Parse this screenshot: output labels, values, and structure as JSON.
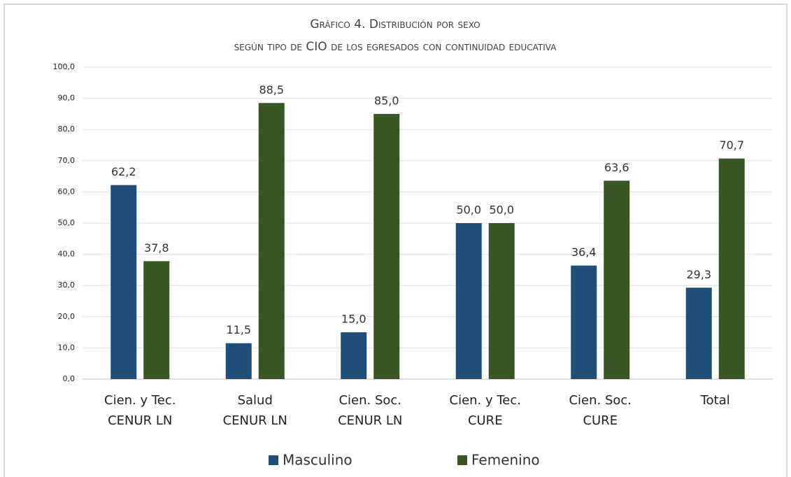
{
  "chart_data": {
    "type": "bar",
    "title": [
      "Gráfico 4. Distribución por sexo",
      "según tipo de CIO de los egresados con continuidad educativa"
    ],
    "categories": [
      [
        "Cien. y Tec.",
        "CENUR LN"
      ],
      [
        "Salud",
        "CENUR LN"
      ],
      [
        "Cien. Soc.",
        "CENUR LN"
      ],
      [
        "Cien. y Tec.",
        "CURE"
      ],
      [
        "Cien. Soc.",
        "CURE"
      ],
      [
        "Total"
      ]
    ],
    "series": [
      {
        "name": "Masculino",
        "color": "#1f4e79",
        "values": [
          62.2,
          11.5,
          15.0,
          50.0,
          36.4,
          29.3
        ],
        "value_labels": [
          "62,2",
          "11,5",
          "15,0",
          "50,0",
          "36,4",
          "29,3"
        ]
      },
      {
        "name": "Femenino",
        "color": "#375623",
        "values": [
          37.8,
          88.5,
          85.0,
          50.0,
          63.6,
          70.7
        ],
        "value_labels": [
          "37,8",
          "88,5",
          "85,0",
          "50,0",
          "63,6",
          "70,7"
        ]
      }
    ],
    "ylim": [
      0,
      100
    ],
    "yticks": [
      {
        "value": 0,
        "label": "0,0"
      },
      {
        "value": 10,
        "label": "10,0"
      },
      {
        "value": 20,
        "label": "20,0"
      },
      {
        "value": 30,
        "label": "30,0"
      },
      {
        "value": 40,
        "label": "40,0"
      },
      {
        "value": 50,
        "label": "50,0"
      },
      {
        "value": 60,
        "label": "60,0"
      },
      {
        "value": 70,
        "label": "70,0"
      },
      {
        "value": 80,
        "label": "80,0"
      },
      {
        "value": 90,
        "label": "90,0"
      },
      {
        "value": 100,
        "label": "100,0"
      }
    ],
    "grid": true,
    "legend": "bottom"
  }
}
